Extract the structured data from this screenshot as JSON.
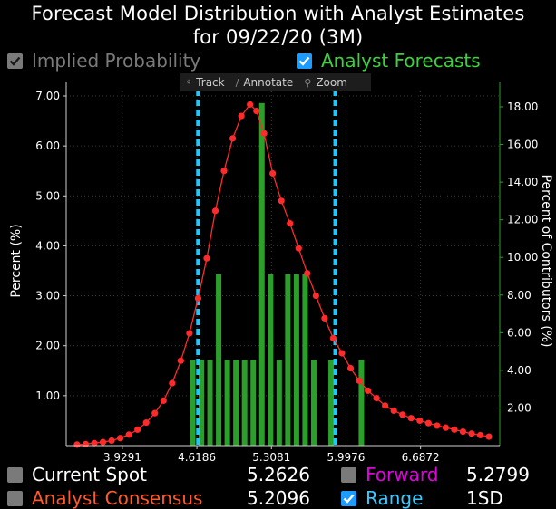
{
  "title_line1": "Forecast Model Distribution with Analyst Estimates",
  "title_line2": "for  09/22/20 (3M)",
  "legend": {
    "implied_probability": "Implied Probability",
    "analyst_forecasts": "Analyst Forecasts"
  },
  "toolbar": {
    "track": "Track",
    "annotate": "Annotate",
    "zoom": "Zoom"
  },
  "stats": {
    "current_spot_label": "Current Spot",
    "current_spot_value": "5.2626",
    "forward_label": "Forward",
    "forward_value": "5.2799",
    "consensus_label": "Analyst Consensus",
    "consensus_value": "5.2096",
    "range_label": "Range",
    "range_value": "1SD"
  },
  "colors": {
    "curve": "#ff2a2a",
    "bars": "#2aa02a",
    "range_line": "#1ec8ff",
    "forward": "#e000e0",
    "consensus": "#ff5a2a",
    "range_text": "#3cc8ff",
    "analyst_green": "#3cd23c",
    "implied_gray": "#7a7a7a"
  },
  "chart_data": {
    "type": "bar+line",
    "title": "Forecast Model Distribution with Analyst Estimates",
    "ylabel_left": "Percent (%)",
    "ylabel_right": "Percent of Contributors (%)",
    "xlim": [
      3.41,
      7.42
    ],
    "ylim_left": [
      0,
      7.0
    ],
    "ylim_right": [
      0,
      18.0
    ],
    "x_ticks": [
      3.9291,
      4.6186,
      5.3081,
      5.9976,
      6.6872
    ],
    "x_tick_labels": [
      "3.9291",
      "4.6186",
      "5.3081",
      "5.9976",
      "6.6872"
    ],
    "y_left_ticks": [
      1.0,
      2.0,
      3.0,
      4.0,
      5.0,
      6.0,
      7.0
    ],
    "y_left_tick_labels": [
      "1.00",
      "2.00",
      "3.00",
      "4.00",
      "5.00",
      "6.00",
      "7.00"
    ],
    "y_right_ticks": [
      2,
      4,
      6,
      8,
      10,
      12,
      14,
      16,
      18
    ],
    "y_right_tick_labels": [
      "2.00",
      "4.00",
      "6.00",
      "8.00",
      "10.00",
      "12.00",
      "14.00",
      "16.00",
      "18.00"
    ],
    "gridlines": true,
    "range_lines": [
      4.6286,
      5.8976
    ],
    "implied_probability": {
      "x": [
        3.51,
        3.59,
        3.67,
        3.75,
        3.83,
        3.91,
        3.99,
        4.07,
        4.15,
        4.23,
        4.31,
        4.39,
        4.47,
        4.55,
        4.63,
        4.71,
        4.79,
        4.87,
        4.95,
        5.03,
        5.11,
        5.17,
        5.24,
        5.32,
        5.4,
        5.48,
        5.56,
        5.64,
        5.72,
        5.8,
        5.88,
        5.96,
        6.04,
        6.12,
        6.2,
        6.28,
        6.36,
        6.44,
        6.52,
        6.6,
        6.68,
        6.76,
        6.84,
        6.92,
        7.0,
        7.08,
        7.16,
        7.24,
        7.32
      ],
      "y": [
        0.02,
        0.03,
        0.05,
        0.07,
        0.1,
        0.15,
        0.22,
        0.32,
        0.46,
        0.65,
        0.9,
        1.25,
        1.7,
        2.25,
        2.95,
        3.75,
        4.7,
        5.5,
        6.15,
        6.6,
        6.83,
        6.7,
        6.25,
        5.45,
        4.9,
        4.45,
        3.95,
        3.45,
        3.0,
        2.55,
        2.15,
        1.85,
        1.55,
        1.3,
        1.1,
        0.95,
        0.8,
        0.7,
        0.62,
        0.55,
        0.5,
        0.45,
        0.4,
        0.36,
        0.32,
        0.28,
        0.24,
        0.21,
        0.18
      ]
    },
    "analyst_forecasts": {
      "x": [
        4.58,
        4.66,
        4.74,
        4.82,
        4.9,
        4.98,
        5.06,
        5.14,
        5.22,
        5.3,
        5.38,
        5.46,
        5.54,
        5.62,
        5.7,
        5.86,
        6.14
      ],
      "y": [
        4.55,
        4.55,
        4.55,
        9.1,
        4.55,
        4.55,
        4.55,
        4.55,
        18.2,
        9.1,
        4.55,
        9.1,
        9.1,
        9.1,
        4.55,
        4.55,
        4.55
      ]
    }
  }
}
